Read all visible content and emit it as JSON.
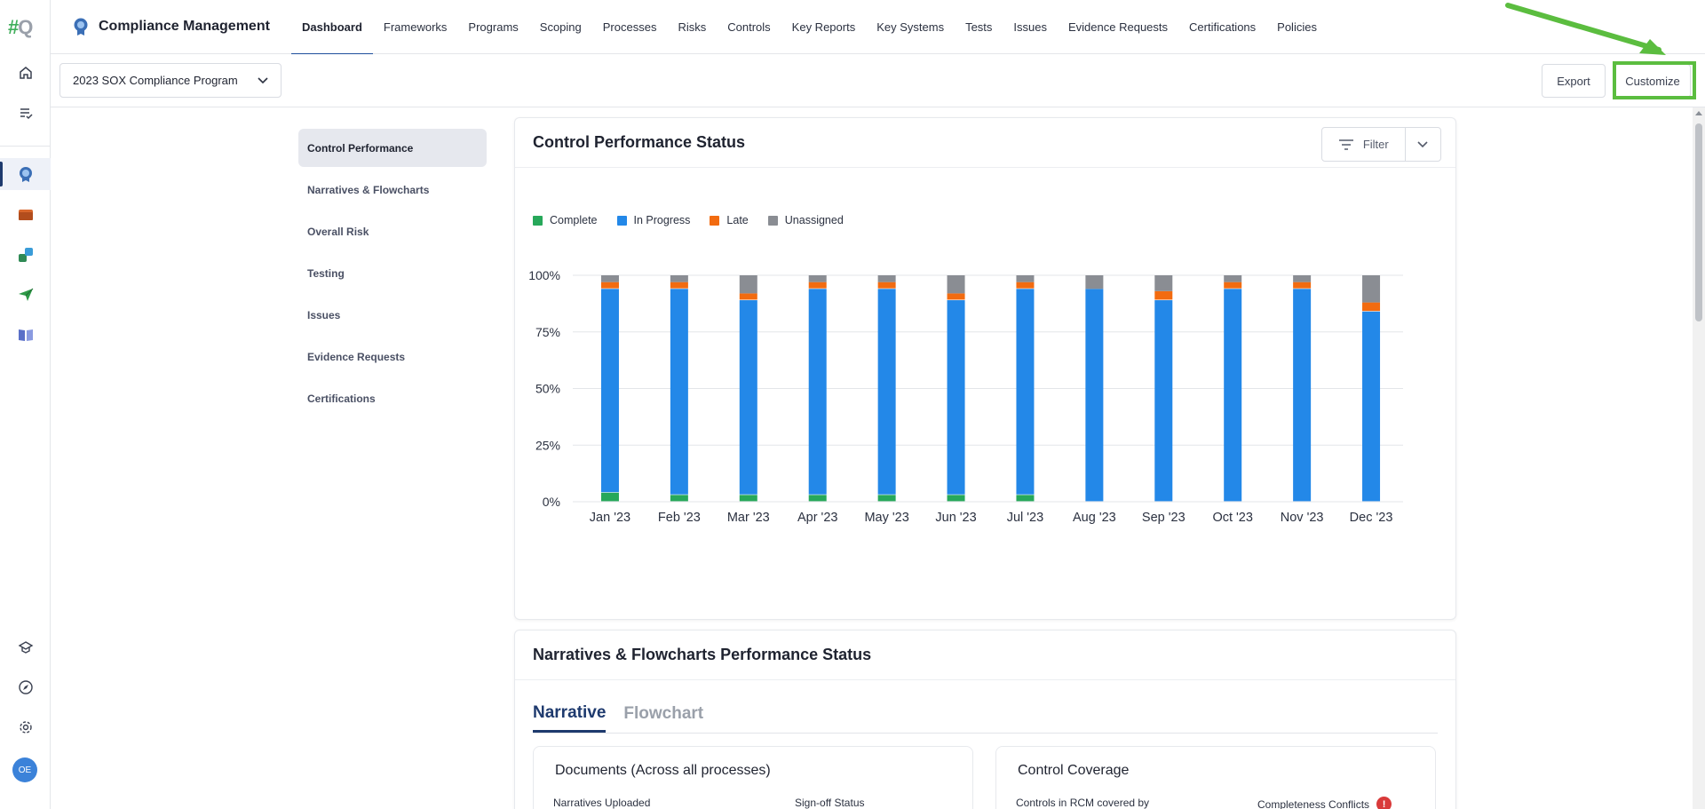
{
  "app": {
    "logo_text": "#Q",
    "title": "Compliance Management"
  },
  "nav": {
    "tabs": [
      "Dashboard",
      "Frameworks",
      "Programs",
      "Scoping",
      "Processes",
      "Risks",
      "Controls",
      "Key Reports",
      "Key Systems",
      "Tests",
      "Issues",
      "Evidence Requests",
      "Certifications",
      "Policies"
    ],
    "active": "Dashboard"
  },
  "rail": {
    "items": [
      "home-icon",
      "tasks-icon",
      "compliance-icon",
      "folder-icon",
      "integrations-icon",
      "send-icon",
      "book-icon"
    ],
    "bottom": [
      "learning-icon",
      "compass-icon",
      "settings-icon"
    ],
    "avatar_initials": "OE"
  },
  "subbar": {
    "program": "2023 SOX Compliance Program",
    "export_label": "Export",
    "customize_label": "Customize"
  },
  "sections": [
    "Control Performance",
    "Narratives & Flowcharts",
    "Overall Risk",
    "Testing",
    "Issues",
    "Evidence Requests",
    "Certifications"
  ],
  "perf_card": {
    "title": "Control Performance Status",
    "filter_label": "Filter"
  },
  "colors": {
    "complete": "#27a85a",
    "in_progress": "#2388e8",
    "late": "#f26b10",
    "unassigned": "#8a8d93",
    "highlight": "#5bbd3f"
  },
  "chart_data": {
    "type": "bar",
    "stacked": true,
    "categories": [
      "Jan '23",
      "Feb '23",
      "Mar '23",
      "Apr '23",
      "May '23",
      "Jun '23",
      "Jul '23",
      "Aug '23",
      "Sep '23",
      "Oct '23",
      "Nov '23",
      "Dec '23"
    ],
    "series": [
      {
        "name": "Complete",
        "values": [
          4,
          3,
          3,
          3,
          3,
          3,
          3,
          0,
          0,
          0,
          0,
          0
        ]
      },
      {
        "name": "In Progress",
        "values": [
          90,
          91,
          86,
          91,
          91,
          86,
          91,
          94,
          89,
          94,
          94,
          84
        ]
      },
      {
        "name": "Late",
        "values": [
          3,
          3,
          3,
          3,
          3,
          3,
          3,
          0,
          4,
          3,
          3,
          4
        ]
      },
      {
        "name": "Unassigned",
        "values": [
          3,
          3,
          8,
          3,
          3,
          8,
          3,
          6,
          7,
          3,
          3,
          12
        ]
      }
    ],
    "yticks": [
      "0%",
      "25%",
      "50%",
      "75%",
      "100%"
    ],
    "ylim": [
      0,
      100
    ],
    "legend_position": "top-left",
    "grid": true
  },
  "narr_card": {
    "title": "Narratives & Flowcharts Performance Status",
    "tabs": [
      "Narrative",
      "Flowchart"
    ],
    "documents_title": "Documents (Across all processes)",
    "narratives_uploaded": "Narratives Uploaded",
    "signoff_status": "Sign-off Status",
    "coverage_title": "Control Coverage",
    "controls_in_rcm": "Controls in RCM covered by",
    "completeness_conflicts": "Completeness Conflicts"
  }
}
